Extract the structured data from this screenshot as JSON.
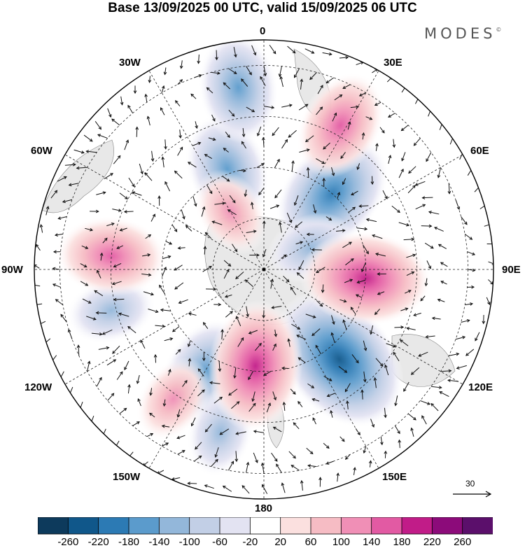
{
  "title": "Base 13/09/2025 00 UTC, valid 15/09/2025 06 UTC",
  "brand": "MODES",
  "brand_mark": "©",
  "longitude_labels": {
    "top": "0",
    "ne30": "30E",
    "ne60": "60E",
    "east": "90E",
    "se120": "120E",
    "se150": "150E",
    "bottom": "180",
    "sw150": "150W",
    "sw120": "120W",
    "west": "90W",
    "nw60": "60W",
    "nw30": "30W"
  },
  "vector_scale": {
    "label": "30"
  },
  "colorbar": {
    "colors": [
      "#0d3a5c",
      "#10578a",
      "#2c7ab4",
      "#5b9bcc",
      "#93b7da",
      "#c2cfe6",
      "#e3e3f2",
      "#ffffff",
      "#fbe0df",
      "#f6bcc4",
      "#f08fb6",
      "#e25aa3",
      "#c11c88",
      "#8c0b7a",
      "#5b0f6b"
    ],
    "ticks": [
      "-260",
      "-220",
      "-180",
      "-140",
      "-100",
      "-60",
      "-20",
      "20",
      "60",
      "100",
      "140",
      "180",
      "220",
      "260"
    ]
  },
  "anomaly_centers": [
    {
      "sign": "neg",
      "strength": 3,
      "lon": 42,
      "colat": 40
    },
    {
      "sign": "neg",
      "strength": 4,
      "lon": 140,
      "colat": 46
    },
    {
      "sign": "neg",
      "strength": 2,
      "lon": -20,
      "colat": 42
    },
    {
      "sign": "neg",
      "strength": 1,
      "lon": -105,
      "colat": 62
    },
    {
      "sign": "neg",
      "strength": 2,
      "lon": -150,
      "colat": 46
    },
    {
      "sign": "neg",
      "strength": 1,
      "lon": -165,
      "colat": 66
    },
    {
      "sign": "neg",
      "strength": 2,
      "lon": -8,
      "colat": 72
    },
    {
      "sign": "neg",
      "strength": 1,
      "lon": 65,
      "colat": 20
    },
    {
      "sign": "pos",
      "strength": 3,
      "lon": 95,
      "colat": 40
    },
    {
      "sign": "pos",
      "strength": 3,
      "lon": -175,
      "colat": 38
    },
    {
      "sign": "pos",
      "strength": 2,
      "lon": -85,
      "colat": 60
    },
    {
      "sign": "pos",
      "strength": 2,
      "lon": 28,
      "colat": 64
    },
    {
      "sign": "pos",
      "strength": 1,
      "lon": -145,
      "colat": 62
    },
    {
      "sign": "pos",
      "strength": 1,
      "lon": -30,
      "colat": 26
    }
  ]
}
